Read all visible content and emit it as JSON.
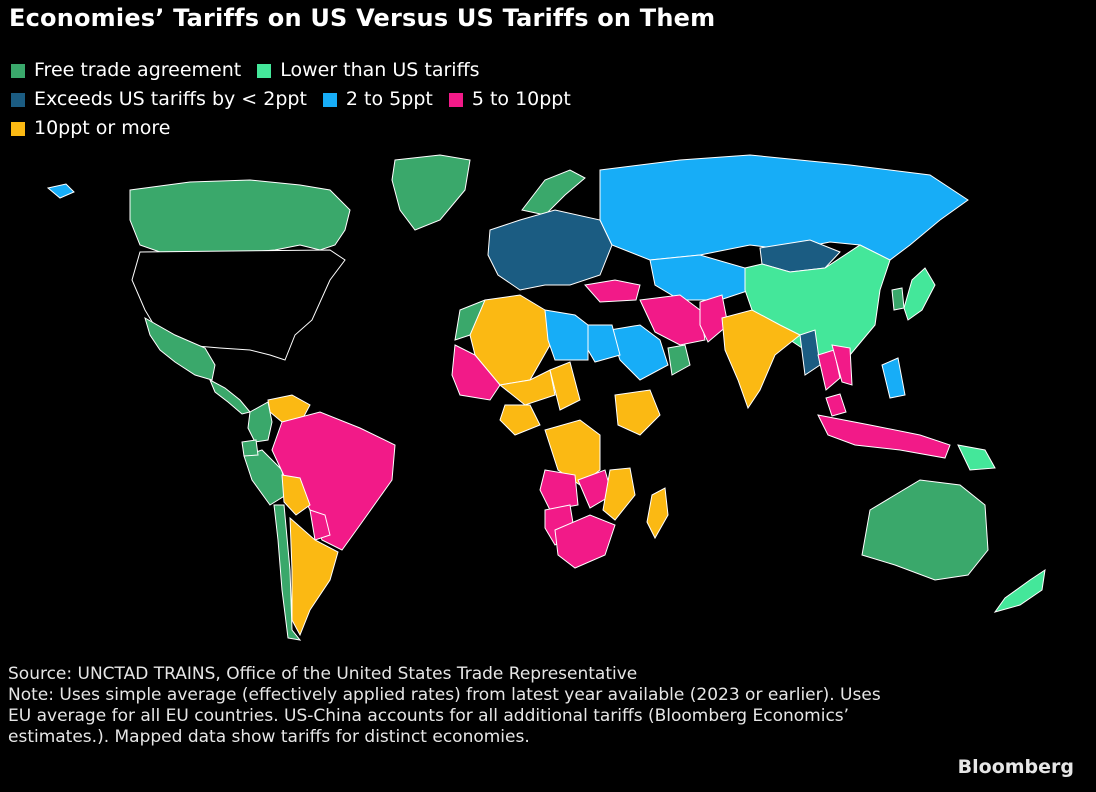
{
  "title": "Economies’ Tariffs on US Versus US Tariffs on Them",
  "legend": {
    "rows": [
      [
        {
          "key": "fta",
          "label": "Free trade agreement"
        },
        {
          "key": "lower",
          "label": "Lower than US tariffs"
        }
      ],
      [
        {
          "key": "exceeds_lt2",
          "label": "Exceeds US tariffs by < 2ppt"
        },
        {
          "key": "two_to_five",
          "label": "2 to 5ppt"
        },
        {
          "key": "five_to_ten",
          "label": "5 to 10ppt"
        }
      ],
      [
        {
          "key": "ten_plus",
          "label": "10ppt or more"
        }
      ]
    ]
  },
  "colors": {
    "fta": "#3aa86b",
    "lower": "#44e79a",
    "exceeds_lt2": "#1b5c82",
    "two_to_five": "#17adf7",
    "five_to_ten": "#f21a88",
    "ten_plus": "#fbb913",
    "no_data": "#000000",
    "border": "#ffffff"
  },
  "map_regions": [
    {
      "name": "Canada",
      "category": "fta"
    },
    {
      "name": "Greenland",
      "category": "fta"
    },
    {
      "name": "United States",
      "category": "no_data"
    },
    {
      "name": "Mexico",
      "category": "fta"
    },
    {
      "name": "Central America",
      "category": "fta"
    },
    {
      "name": "Venezuela",
      "category": "ten_plus"
    },
    {
      "name": "Colombia",
      "category": "fta"
    },
    {
      "name": "Peru",
      "category": "fta"
    },
    {
      "name": "Ecuador",
      "category": "fta"
    },
    {
      "name": "Brazil",
      "category": "five_to_ten"
    },
    {
      "name": "Bolivia",
      "category": "ten_plus"
    },
    {
      "name": "Paraguay",
      "category": "five_to_ten"
    },
    {
      "name": "Argentina",
      "category": "ten_plus"
    },
    {
      "name": "Chile",
      "category": "fta"
    },
    {
      "name": "Iceland",
      "category": "two_to_five"
    },
    {
      "name": "Norway",
      "category": "fta"
    },
    {
      "name": "European Union",
      "category": "exceeds_lt2"
    },
    {
      "name": "Russia",
      "category": "two_to_five"
    },
    {
      "name": "Kazakhstan",
      "category": "two_to_five"
    },
    {
      "name": "Mongolia",
      "category": "exceeds_lt2"
    },
    {
      "name": "China",
      "category": "lower"
    },
    {
      "name": "Japan",
      "category": "lower"
    },
    {
      "name": "South Korea",
      "category": "fta"
    },
    {
      "name": "Turkey",
      "category": "five_to_ten"
    },
    {
      "name": "Iran",
      "category": "five_to_ten"
    },
    {
      "name": "Pakistan",
      "category": "five_to_ten"
    },
    {
      "name": "India",
      "category": "ten_plus"
    },
    {
      "name": "Saudi Arabia",
      "category": "two_to_five"
    },
    {
      "name": "Oman",
      "category": "fta"
    },
    {
      "name": "Morocco",
      "category": "fta"
    },
    {
      "name": "Algeria",
      "category": "ten_plus"
    },
    {
      "name": "Libya",
      "category": "two_to_five"
    },
    {
      "name": "Egypt",
      "category": "two_to_five"
    },
    {
      "name": "Mali",
      "category": "five_to_ten"
    },
    {
      "name": "Niger",
      "category": "ten_plus"
    },
    {
      "name": "Chad",
      "category": "ten_plus"
    },
    {
      "name": "Nigeria",
      "category": "ten_plus"
    },
    {
      "name": "Ethiopia",
      "category": "ten_plus"
    },
    {
      "name": "DR Congo",
      "category": "ten_plus"
    },
    {
      "name": "Angola",
      "category": "five_to_ten"
    },
    {
      "name": "Zambia",
      "category": "five_to_ten"
    },
    {
      "name": "Mozambique",
      "category": "ten_plus"
    },
    {
      "name": "Madagascar",
      "category": "ten_plus"
    },
    {
      "name": "Namibia",
      "category": "five_to_ten"
    },
    {
      "name": "South Africa",
      "category": "five_to_ten"
    },
    {
      "name": "Myanmar",
      "category": "exceeds_lt2"
    },
    {
      "name": "Thailand",
      "category": "five_to_ten"
    },
    {
      "name": "Vietnam",
      "category": "five_to_ten"
    },
    {
      "name": "Philippines",
      "category": "two_to_five"
    },
    {
      "name": "Malaysia",
      "category": "five_to_ten"
    },
    {
      "name": "Indonesia",
      "category": "five_to_ten"
    },
    {
      "name": "Papua New Guinea",
      "category": "lower"
    },
    {
      "name": "Australia",
      "category": "fta"
    },
    {
      "name": "New Zealand",
      "category": "lower"
    }
  ],
  "footer": {
    "source": "Source: UNCTAD TRAINS, Office of the United States Trade Representative",
    "note": "Note: Uses simple average (effectively applied rates) from latest year available (2023 or earlier). Uses EU average for all EU countries. US-China accounts for all additional tariffs (Bloomberg Economics’ estimates.). Mapped data show tariffs for distinct economies."
  },
  "brand": "Bloomberg"
}
